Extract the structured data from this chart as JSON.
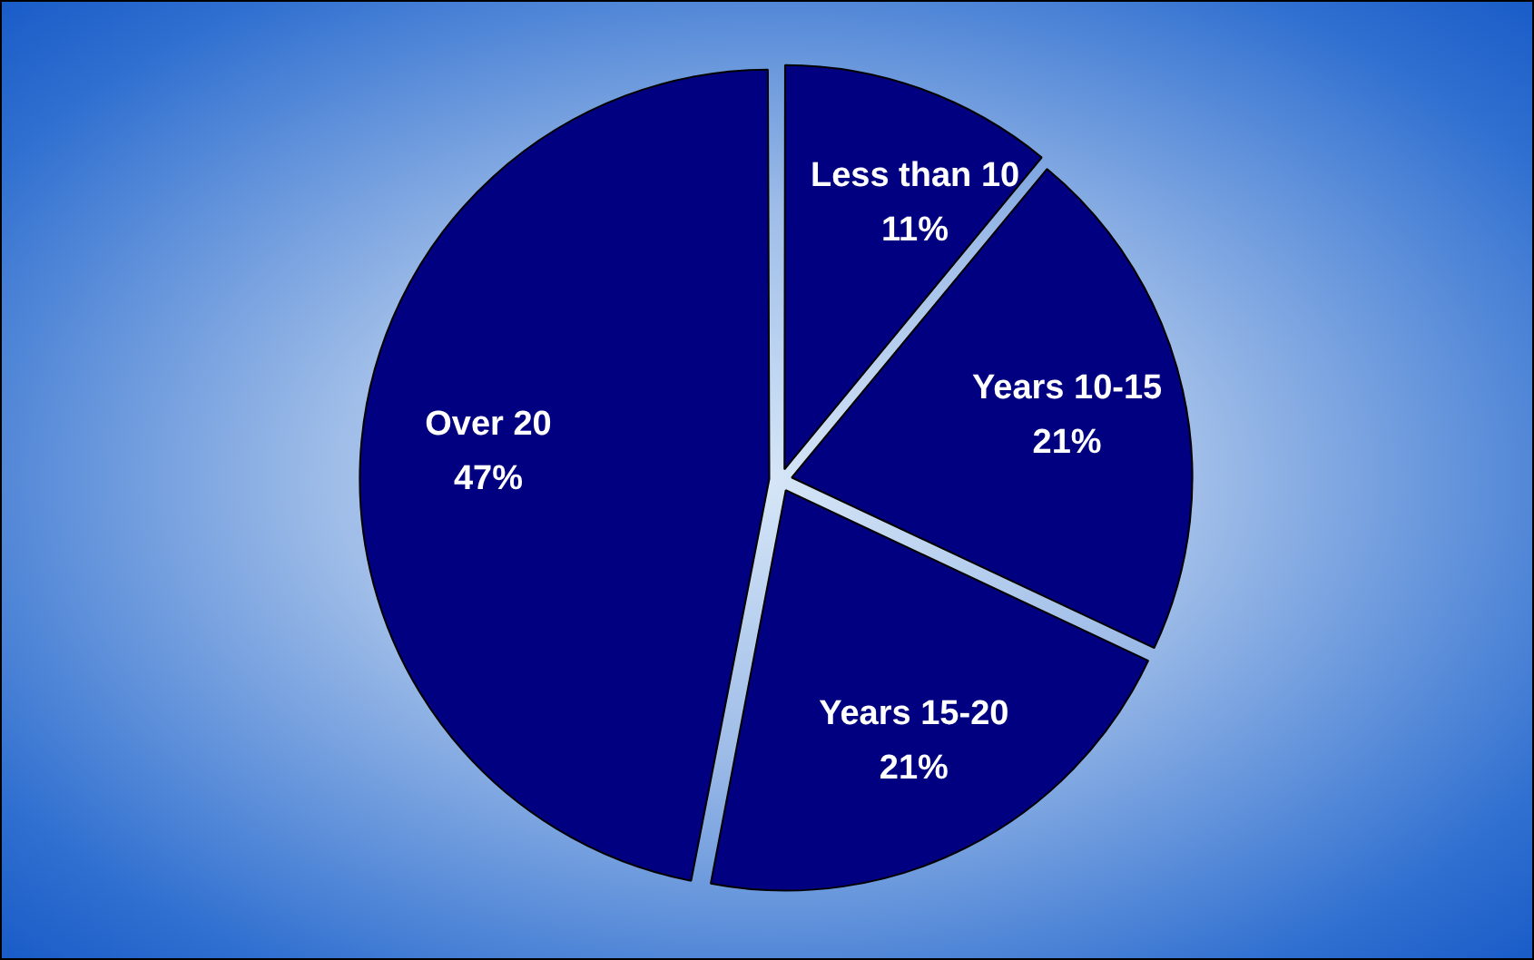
{
  "chart_data": {
    "type": "pie",
    "categories": [
      "Less than 10",
      "Years 10-15",
      "Years 15-20",
      "Over 20"
    ],
    "values": [
      11,
      21,
      21,
      47
    ],
    "colors": [
      "#000080",
      "#000080",
      "#000080",
      "#000080"
    ],
    "value_labels": [
      "11%",
      "21%",
      "21%",
      "47%"
    ],
    "legend": false
  }
}
